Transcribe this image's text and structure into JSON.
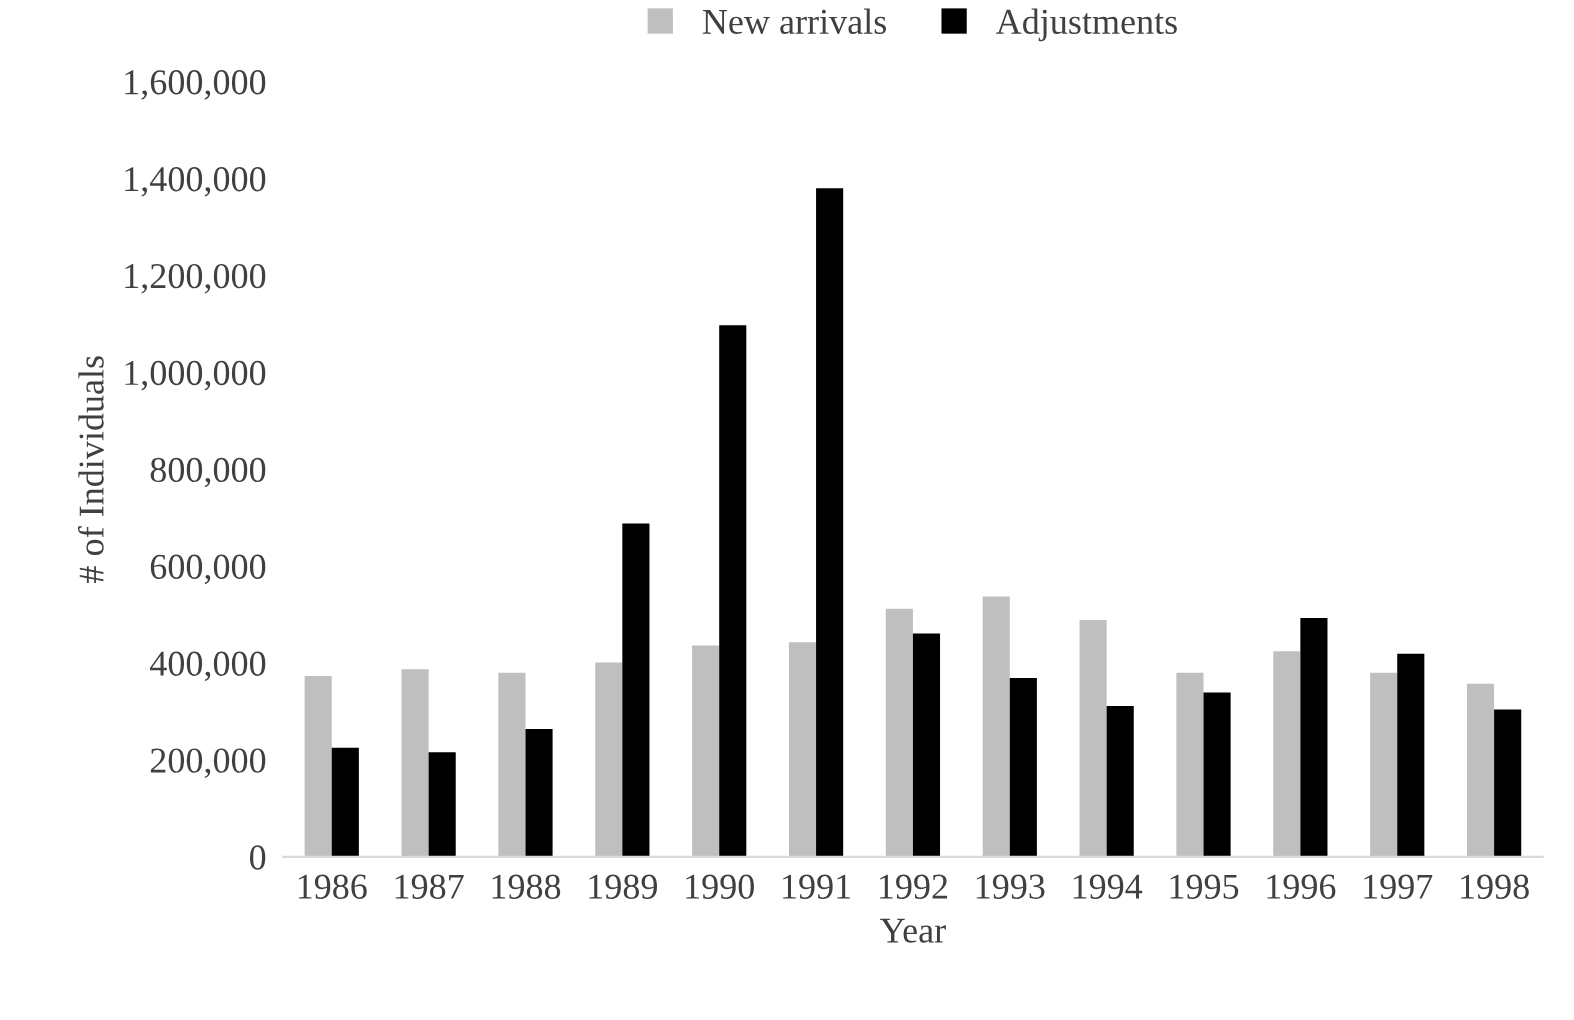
{
  "chart_data": {
    "type": "bar",
    "xlabel": "Year",
    "ylabel": "# of Individuals",
    "categories": [
      "1986",
      "1987",
      "1988",
      "1989",
      "1990",
      "1991",
      "1992",
      "1993",
      "1994",
      "1995",
      "1996",
      "1997",
      "1998"
    ],
    "series": [
      {
        "name": "New arrivals",
        "color": "#bfbfbf",
        "values": [
          373000,
          387000,
          380000,
          401000,
          436000,
          443000,
          512000,
          537000,
          489000,
          380000,
          424000,
          380000,
          357000
        ]
      },
      {
        "name": "Adjustments",
        "color": "#000000",
        "values": [
          225000,
          216000,
          264000,
          688000,
          1097000,
          1380000,
          461000,
          369000,
          311000,
          339000,
          493000,
          419000,
          304000
        ]
      }
    ],
    "ylim": [
      0,
      1600000
    ],
    "yticks": [
      {
        "value": 0,
        "label": "0"
      },
      {
        "value": 200000,
        "label": "200,000"
      },
      {
        "value": 400000,
        "label": "400,000"
      },
      {
        "value": 600000,
        "label": "600,000"
      },
      {
        "value": 800000,
        "label": "800,000"
      },
      {
        "value": 1000000,
        "label": "1,000,000"
      },
      {
        "value": 1200000,
        "label": "1,200,000"
      },
      {
        "value": 1400000,
        "label": "1,400,000"
      },
      {
        "value": 1600000,
        "label": "1,600,000"
      }
    ],
    "grid": false,
    "legend": "top"
  }
}
